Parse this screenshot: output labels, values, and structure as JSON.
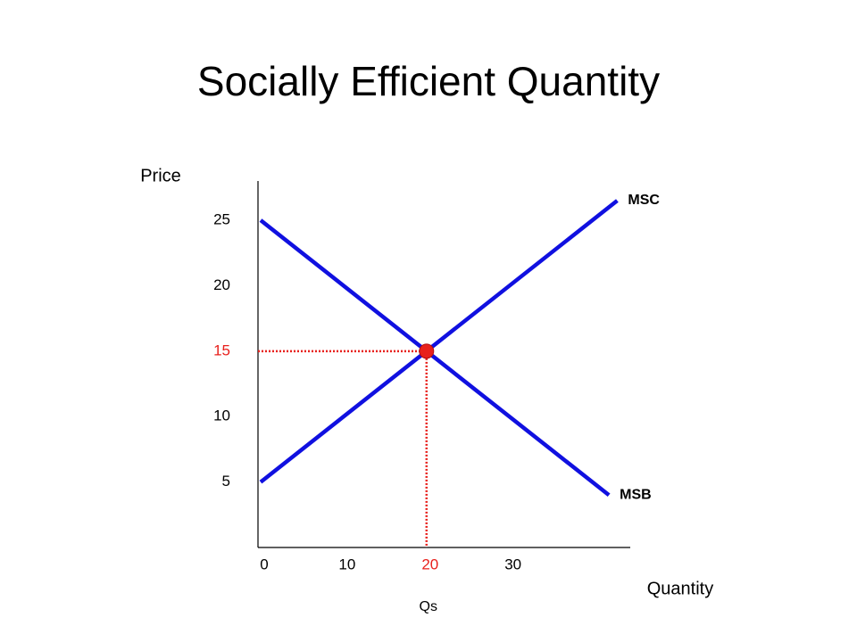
{
  "chart_data": {
    "type": "line",
    "title": "Socially Efficient Quantity",
    "ylabel": "Price",
    "xlabel": "Quantity",
    "series": [
      {
        "name": "MSB",
        "color": "#1010e0",
        "x": [
          0,
          42
        ],
        "values": [
          25,
          4
        ]
      },
      {
        "name": "MSC",
        "color": "#1010e0",
        "x": [
          0,
          43
        ],
        "values": [
          5,
          26.5
        ]
      }
    ],
    "xlim": [
      0,
      45
    ],
    "ylim": [
      0,
      28
    ],
    "xticks": [
      0,
      10,
      20,
      30
    ],
    "yticks": [
      5,
      10,
      15,
      20,
      25
    ],
    "highlight": {
      "x": 20,
      "y": 15,
      "color": "#e8201c",
      "label": "Qs"
    }
  }
}
